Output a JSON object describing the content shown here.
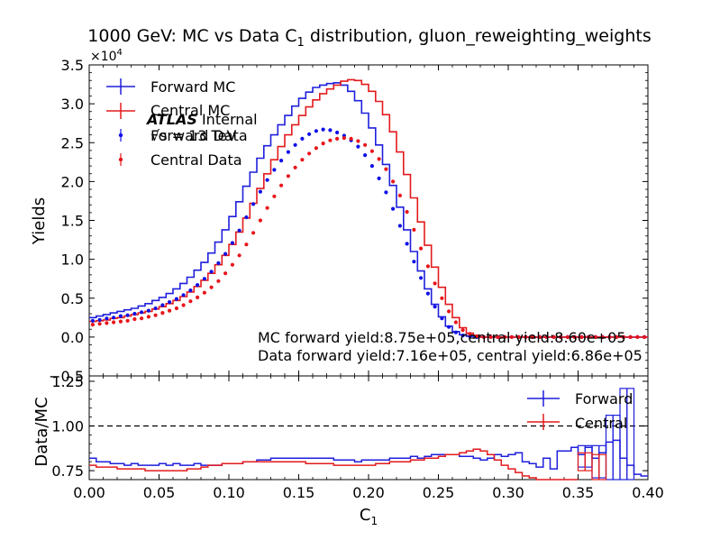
{
  "chart_data": [
    {
      "type": "line",
      "panel": "main",
      "title": {
        "main": "1000 GeV: MC vs Data C",
        "sub": "1",
        "tail": " distribution, gluon_reweighting_weights"
      },
      "ylabel": "Yields",
      "y_multiplier": "×10",
      "y_multiplier_exp": "4",
      "xlim": [
        0.0,
        0.4
      ],
      "ylim": [
        -0.5,
        3.5
      ],
      "yticks": [
        "−0.5",
        "0.0",
        "0.5",
        "1.0",
        "1.5",
        "2.0",
        "2.5",
        "3.0",
        "3.5"
      ],
      "bin_width": 0.005,
      "legend": {
        "position": "top-left",
        "entries": [
          "Forward MC",
          "Central MC",
          "Forward Data",
          "Central Data"
        ]
      },
      "atlas_label": {
        "bold": "ATLAS",
        "rest": " Internal"
      },
      "energy_label": "√s = 13 TeV",
      "annotations": [
        "MC forward yield:8.75e+05,central yield:8.60e+05",
        "Data forward yield:7.16e+05, central yield:6.86e+05"
      ],
      "series": [
        {
          "name": "Forward MC",
          "style": "step",
          "color": "#1f1fdc",
          "values": [
            0.25,
            0.27,
            0.29,
            0.31,
            0.33,
            0.35,
            0.37,
            0.4,
            0.43,
            0.47,
            0.51,
            0.56,
            0.62,
            0.69,
            0.77,
            0.86,
            0.96,
            1.08,
            1.22,
            1.38,
            1.55,
            1.74,
            1.94,
            2.12,
            2.3,
            2.46,
            2.6,
            2.73,
            2.85,
            2.97,
            3.07,
            3.15,
            3.21,
            3.24,
            3.26,
            3.27,
            3.24,
            3.16,
            3.04,
            2.88,
            2.69,
            2.47,
            2.22,
            1.95,
            1.67,
            1.38,
            1.1,
            0.85,
            0.62,
            0.42,
            0.26,
            0.14,
            0.07,
            0.03,
            0.01,
            0.0,
            0.0,
            0.0,
            0.0,
            0.0,
            0.0,
            0.0,
            0.0,
            0.0,
            0.0,
            0.0,
            0.0,
            0.0,
            0.0,
            0.0,
            0.0,
            0.0,
            0.0,
            0.0,
            0.0,
            0.0,
            0.0,
            0.0,
            0.0,
            0.0
          ]
        },
        {
          "name": "Central MC",
          "style": "step",
          "color": "#e31a1c",
          "values": [
            0.2,
            0.21,
            0.22,
            0.24,
            0.25,
            0.27,
            0.29,
            0.31,
            0.33,
            0.36,
            0.39,
            0.43,
            0.47,
            0.52,
            0.58,
            0.65,
            0.73,
            0.82,
            0.93,
            1.05,
            1.19,
            1.35,
            1.53,
            1.72,
            1.91,
            2.1,
            2.28,
            2.45,
            2.6,
            2.73,
            2.85,
            2.96,
            3.05,
            3.13,
            3.19,
            3.24,
            3.29,
            3.31,
            3.3,
            3.25,
            3.16,
            3.03,
            2.86,
            2.64,
            2.38,
            2.09,
            1.79,
            1.48,
            1.18,
            0.9,
            0.64,
            0.42,
            0.25,
            0.12,
            0.05,
            0.02,
            0.0,
            0.0,
            0.0,
            0.0,
            0.0,
            0.0,
            0.0,
            0.0,
            0.0,
            0.0,
            0.0,
            0.0,
            0.0,
            0.0,
            0.0,
            0.0,
            0.0,
            0.0,
            0.0,
            0.0,
            0.0,
            0.0,
            0.0,
            0.0
          ]
        },
        {
          "name": "Forward Data",
          "style": "points",
          "color": "#1010e8",
          "values": [
            0.21,
            0.22,
            0.24,
            0.25,
            0.27,
            0.28,
            0.3,
            0.32,
            0.34,
            0.37,
            0.41,
            0.45,
            0.49,
            0.54,
            0.6,
            0.67,
            0.75,
            0.84,
            0.95,
            1.07,
            1.21,
            1.37,
            1.54,
            1.71,
            1.87,
            2.02,
            2.15,
            2.27,
            2.38,
            2.47,
            2.55,
            2.61,
            2.65,
            2.67,
            2.66,
            2.63,
            2.59,
            2.53,
            2.45,
            2.34,
            2.2,
            2.04,
            1.86,
            1.65,
            1.43,
            1.2,
            0.97,
            0.76,
            0.56,
            0.39,
            0.24,
            0.13,
            0.06,
            0.02,
            0.01,
            0.0,
            0.0,
            0.0,
            0.0,
            0.0,
            0.0,
            0.0,
            0.0,
            0.0,
            0.0,
            0.0,
            0.0,
            0.0,
            0.0,
            0.0,
            0.0,
            0.0,
            0.0,
            0.0,
            0.0,
            0.0,
            0.0,
            0.0,
            0.0,
            0.0
          ]
        },
        {
          "name": "Central Data",
          "style": "points",
          "color": "#e8141a",
          "values": [
            0.16,
            0.17,
            0.18,
            0.19,
            0.2,
            0.21,
            0.23,
            0.24,
            0.26,
            0.28,
            0.31,
            0.34,
            0.37,
            0.41,
            0.46,
            0.51,
            0.57,
            0.64,
            0.72,
            0.82,
            0.93,
            1.05,
            1.19,
            1.34,
            1.5,
            1.66,
            1.81,
            1.95,
            2.07,
            2.18,
            2.28,
            2.36,
            2.43,
            2.49,
            2.53,
            2.55,
            2.56,
            2.55,
            2.52,
            2.47,
            2.39,
            2.29,
            2.16,
            2.0,
            1.82,
            1.61,
            1.38,
            1.14,
            0.91,
            0.69,
            0.5,
            0.33,
            0.19,
            0.09,
            0.04,
            0.01,
            0.0,
            0.0,
            0.0,
            0.0,
            0.0,
            0.0,
            0.0,
            0.0,
            0.0,
            0.0,
            0.0,
            0.0,
            0.0,
            0.0,
            0.0,
            0.0,
            0.0,
            0.0,
            0.0,
            0.0,
            0.0,
            0.0,
            0.0,
            0.0
          ]
        }
      ]
    },
    {
      "type": "line",
      "panel": "ratio",
      "xlabel": "C",
      "xlabel_sub": "1",
      "ylabel": "Data/MC",
      "xlim": [
        0.0,
        0.4
      ],
      "ylim": [
        0.7,
        1.28
      ],
      "xticks": [
        "0.00",
        "0.05",
        "0.10",
        "0.15",
        "0.20",
        "0.25",
        "0.30",
        "0.35",
        "0.40"
      ],
      "yticks": [
        "0.75",
        "1.00",
        "1.25"
      ],
      "reference_line": 1.0,
      "legend": {
        "position": "top-right",
        "entries": [
          "Forward",
          "Central"
        ]
      },
      "bin_width": 0.005,
      "series": [
        {
          "name": "Forward",
          "color": "#1f1fdc",
          "values": [
            0.82,
            0.8,
            0.8,
            0.79,
            0.79,
            0.78,
            0.79,
            0.78,
            0.78,
            0.78,
            0.79,
            0.78,
            0.79,
            0.78,
            0.78,
            0.79,
            0.78,
            0.78,
            0.78,
            0.79,
            0.79,
            0.79,
            0.8,
            0.8,
            0.81,
            0.81,
            0.82,
            0.82,
            0.82,
            0.82,
            0.82,
            0.82,
            0.82,
            0.82,
            0.82,
            0.81,
            0.81,
            0.81,
            0.8,
            0.81,
            0.81,
            0.81,
            0.81,
            0.82,
            0.82,
            0.82,
            0.83,
            0.82,
            0.83,
            0.84,
            0.84,
            0.84,
            0.84,
            0.83,
            0.83,
            0.82,
            0.81,
            0.82,
            0.84,
            0.83,
            0.84,
            0.85,
            0.8,
            0.79,
            0.77,
            0.82,
            0.76,
            0.86,
            0.86,
            0.88,
            0.84,
            0.88,
            0.82,
            0.85,
            0.91,
            0.92,
            0.82,
            0.78,
            0.73,
            0.72
          ],
          "error_bars": [
            {
              "x": 0.355,
              "value": 0.83,
              "err": 0.06
            },
            {
              "x": 0.365,
              "value": 0.8,
              "err": 0.09
            },
            {
              "x": 0.375,
              "value": 0.76,
              "err": 0.3
            },
            {
              "x": 0.385,
              "value": 0.91,
              "err": 0.3
            }
          ]
        },
        {
          "name": "Central",
          "color": "#e31a1c",
          "values": [
            0.78,
            0.77,
            0.77,
            0.77,
            0.76,
            0.76,
            0.76,
            0.76,
            0.75,
            0.75,
            0.75,
            0.75,
            0.75,
            0.75,
            0.76,
            0.76,
            0.77,
            0.78,
            0.78,
            0.79,
            0.79,
            0.79,
            0.8,
            0.8,
            0.8,
            0.8,
            0.8,
            0.8,
            0.8,
            0.8,
            0.8,
            0.79,
            0.79,
            0.79,
            0.79,
            0.78,
            0.78,
            0.78,
            0.78,
            0.78,
            0.78,
            0.79,
            0.79,
            0.8,
            0.8,
            0.8,
            0.81,
            0.81,
            0.82,
            0.82,
            0.83,
            0.84,
            0.84,
            0.85,
            0.86,
            0.87,
            0.86,
            0.84,
            0.81,
            0.78,
            0.76,
            0.74,
            0.72,
            0.71,
            0.7,
            0.7,
            0.7,
            0.7,
            0.7,
            0.7,
            0.7,
            0.7,
            0.7,
            0.7,
            0.7,
            0.7,
            0.7,
            0.7,
            0.7,
            0.7
          ],
          "error_bars": [
            {
              "x": 0.355,
              "value": 0.8,
              "err": 0.05
            },
            {
              "x": 0.365,
              "value": 0.76,
              "err": 0.08
            }
          ]
        }
      ]
    }
  ]
}
